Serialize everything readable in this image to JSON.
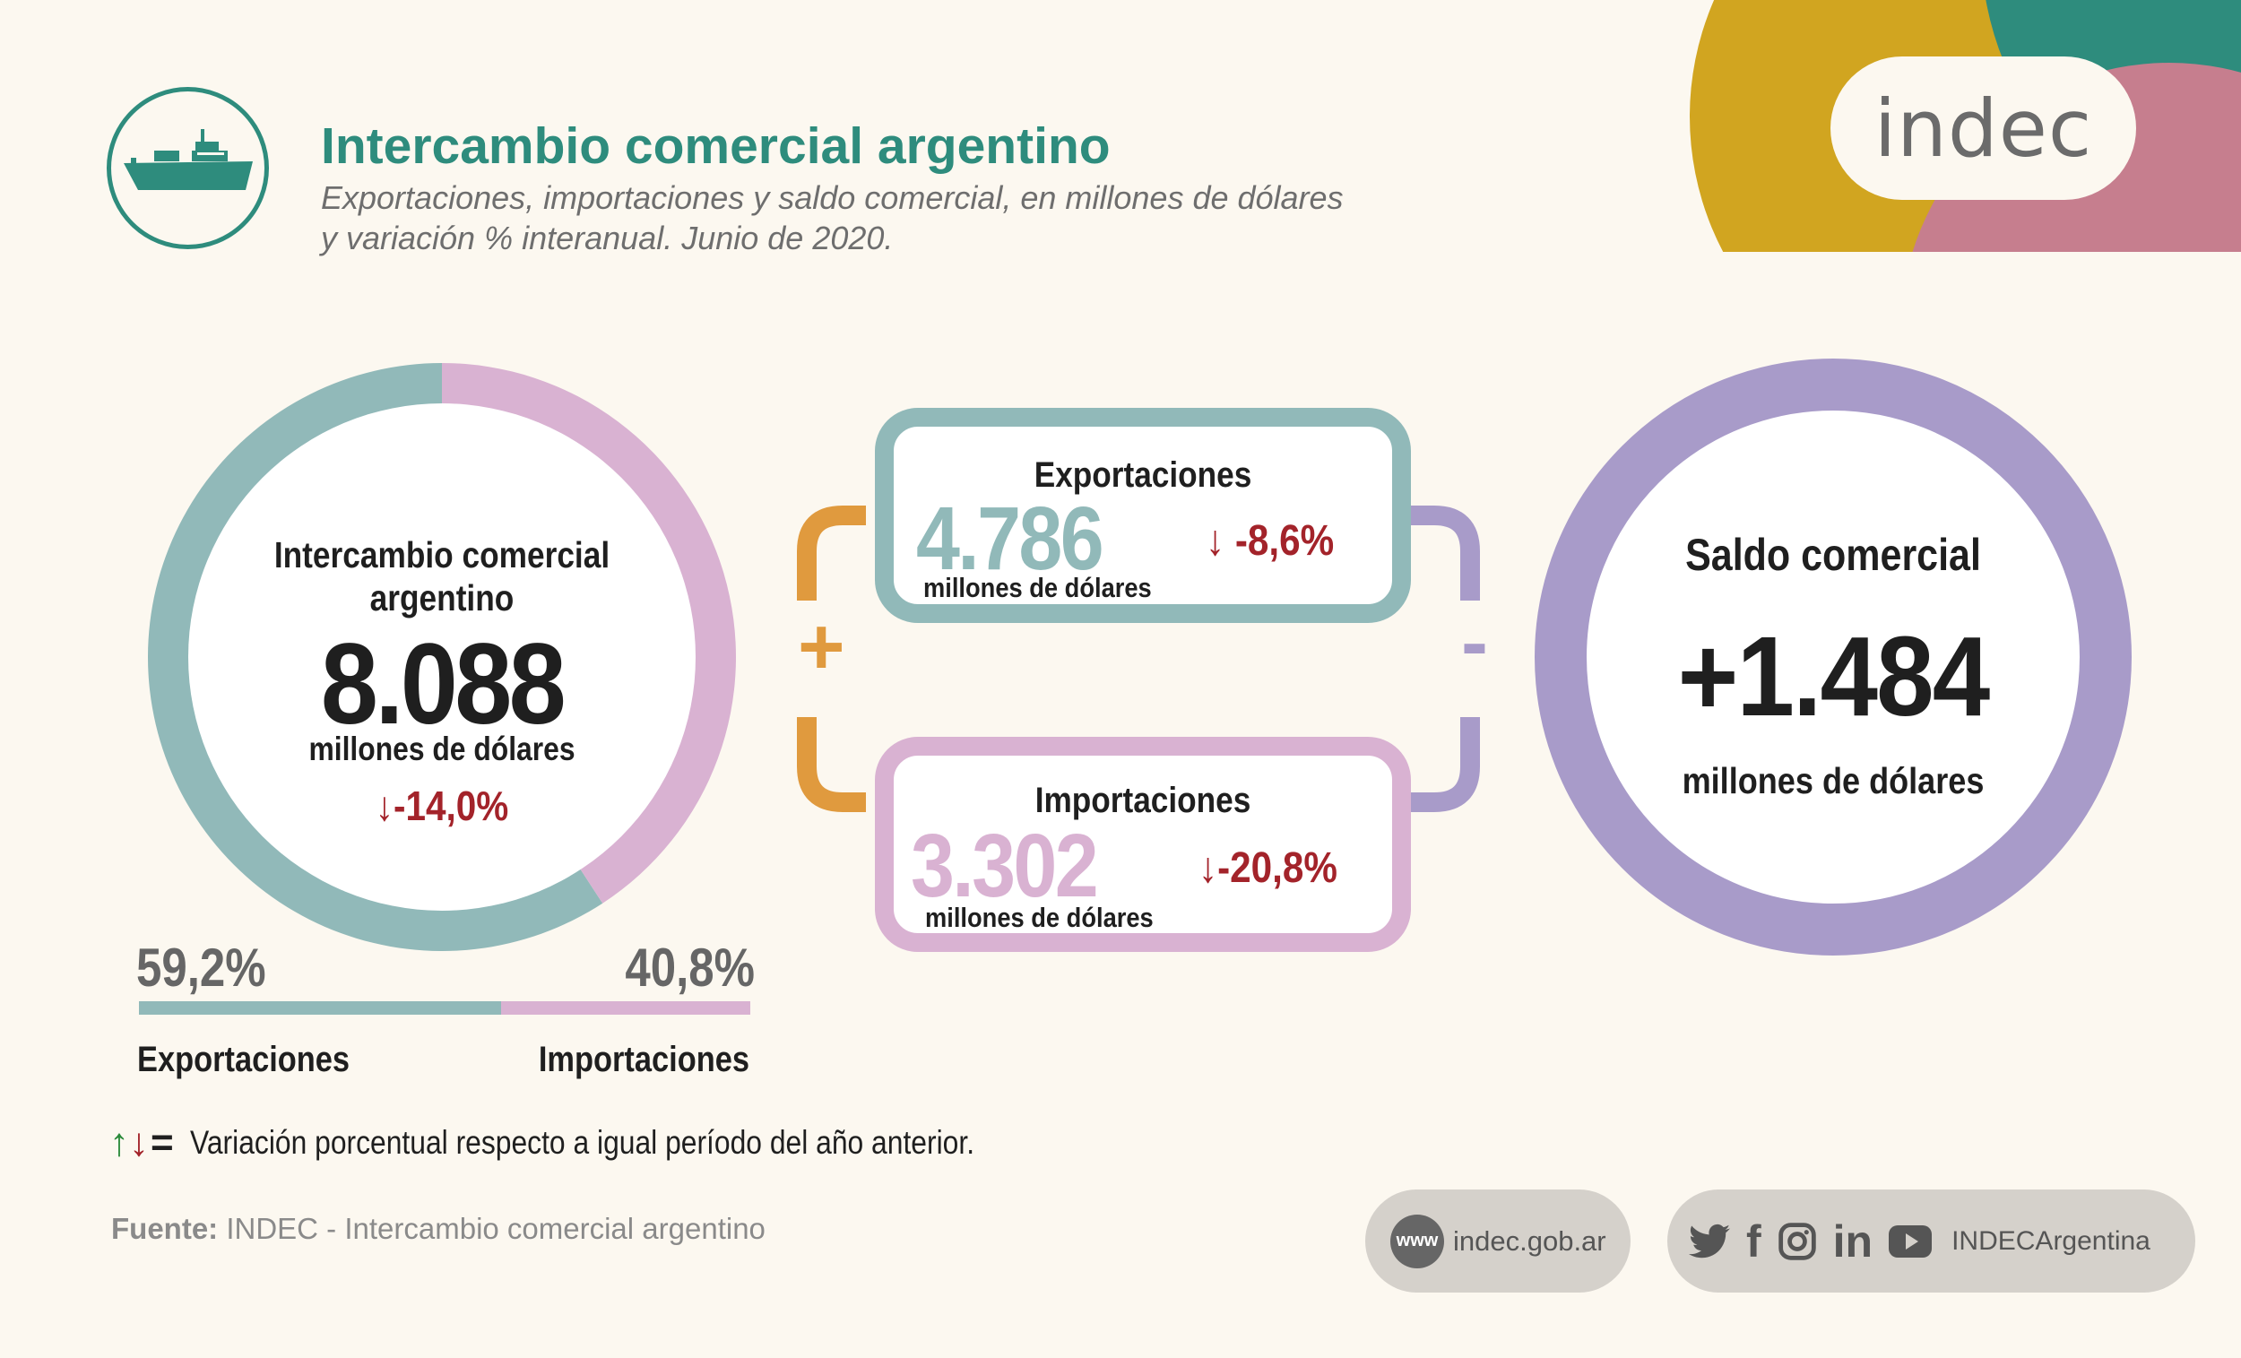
{
  "header": {
    "title": "Intercambio comercial argentino",
    "subtitle_line1": "Exportaciones, importaciones y saldo comercial, en millones de dólares",
    "subtitle_line2": "y variación % interanual. Junio de 2020.",
    "ship_icon": "cargo-ship-icon"
  },
  "logo": {
    "text": "indec"
  },
  "colors": {
    "teal": "#2e8c7d",
    "export": "#91b9b9",
    "import": "#d9b2d2",
    "saldo": "#a89bc9",
    "plus": "#e09a3e",
    "negative": "#a3232a",
    "positive": "#2a8a3a",
    "corner_gold": "#d1a520",
    "corner_teal": "#2e8c7d",
    "corner_pink": "#c67e8e"
  },
  "chart_data": {
    "type": "pie",
    "donut": true,
    "categories": [
      "Exportaciones",
      "Importaciones"
    ],
    "values": [
      59.2,
      40.8
    ],
    "value_labels": [
      "59,2%",
      "40,8%"
    ],
    "center_title": "Intercambio comercial argentino",
    "center_value": "8.088",
    "center_unit": "millones de dólares",
    "center_variation": "-14,0%"
  },
  "exports": {
    "title": "Exportaciones",
    "value": "4.786",
    "unit": "millones de dólares",
    "variation": "-8,6%"
  },
  "imports": {
    "title": "Importaciones",
    "value": "3.302",
    "unit": "millones de dólares",
    "variation": "-20,8%"
  },
  "operators": {
    "plus": "+",
    "minus": "-"
  },
  "saldo": {
    "title": "Saldo comercial",
    "value": "+1.484",
    "unit": "millones de dólares"
  },
  "note": {
    "up": "↑",
    "down": "↓",
    "eq": "=",
    "text": "Variación porcentual respecto a igual período del año anterior."
  },
  "source": {
    "label": "Fuente:",
    "text": " INDEC - Intercambio comercial argentino"
  },
  "footer": {
    "web_icon_text": "www",
    "web": "indec.gob.ar",
    "social_icons": [
      "twitter-icon",
      "facebook-icon",
      "instagram-icon",
      "linkedin-icon",
      "youtube-icon"
    ],
    "facebook_glyph": "f",
    "linkedin_glyph": "in",
    "social_handle": "INDECArgentina"
  }
}
